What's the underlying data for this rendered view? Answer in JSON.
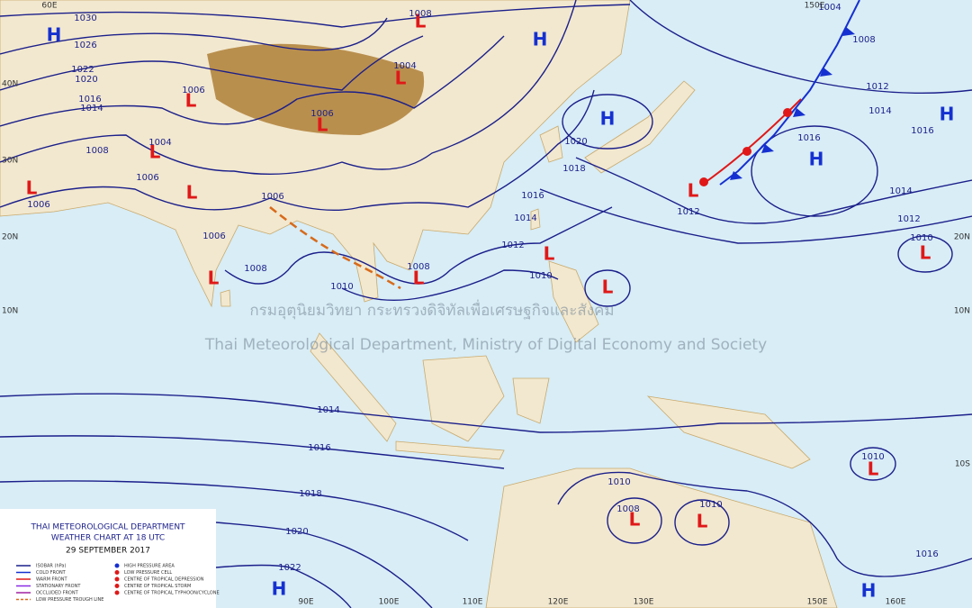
{
  "header": {
    "agency": "THAI METEOROLOGICAL DEPARTMENT",
    "chart": "WEATHER CHART AT  18  UTC",
    "date": "29 SEPTEMBER 2017"
  },
  "legend": {
    "left": [
      "ISOBAR (hPa)",
      "COLD FRONT",
      "WARM FRONT",
      "STATIONARY FRONT",
      "OCCLUDED FRONT",
      "LOW PRESSURE TROUGH LINE"
    ],
    "right": [
      "HIGH PRESSURE AREA",
      "LOW PRESSURE CELL",
      "CENTRE OF TROPICAL DEPRESSION",
      "CENTRE OF TROPICAL STORM",
      "CENTRE OF TROPICAL TYPHOON/CYCLONE"
    ]
  },
  "watermark": {
    "thai": "กรมอุตุนิยมวิทยา กระทรวงดิจิทัลเพื่อเศรษฐกิจและสังคม",
    "english": "Thai Meteorological Department, Ministry of Digital Economy and Society"
  },
  "pressure_centers": [
    "H",
    "H",
    "H",
    "H",
    "H",
    "H",
    "H",
    "L",
    "L",
    "L",
    "L",
    "L",
    "L",
    "L",
    "L",
    "L",
    "L",
    "L",
    "L",
    "L",
    "L",
    "L",
    "L"
  ],
  "isobar_labels": [
    "1030",
    "1026",
    "1022",
    "1020",
    "1016",
    "1014",
    "1008",
    "1006",
    "1006",
    "1004",
    "1006",
    "1006",
    "1006",
    "1008",
    "1006",
    "1010",
    "1008",
    "1010",
    "1012",
    "1014",
    "1016",
    "1018",
    "1020",
    "1004",
    "1008",
    "1004",
    "1008",
    "1012",
    "1014",
    "1016",
    "1016",
    "1014",
    "1012",
    "1010",
    "1012",
    "1014",
    "1016",
    "1018",
    "1020",
    "1022",
    "1010",
    "1008",
    "1010",
    "1010",
    "1016"
  ],
  "longitudes": [
    "90E",
    "100E",
    "110E",
    "120E",
    "130E",
    "150E",
    "160E",
    "60E",
    "150E"
  ],
  "latitudes": [
    "40N",
    "30N",
    "20N",
    "10N",
    "20N",
    "10N",
    "10S"
  ]
}
